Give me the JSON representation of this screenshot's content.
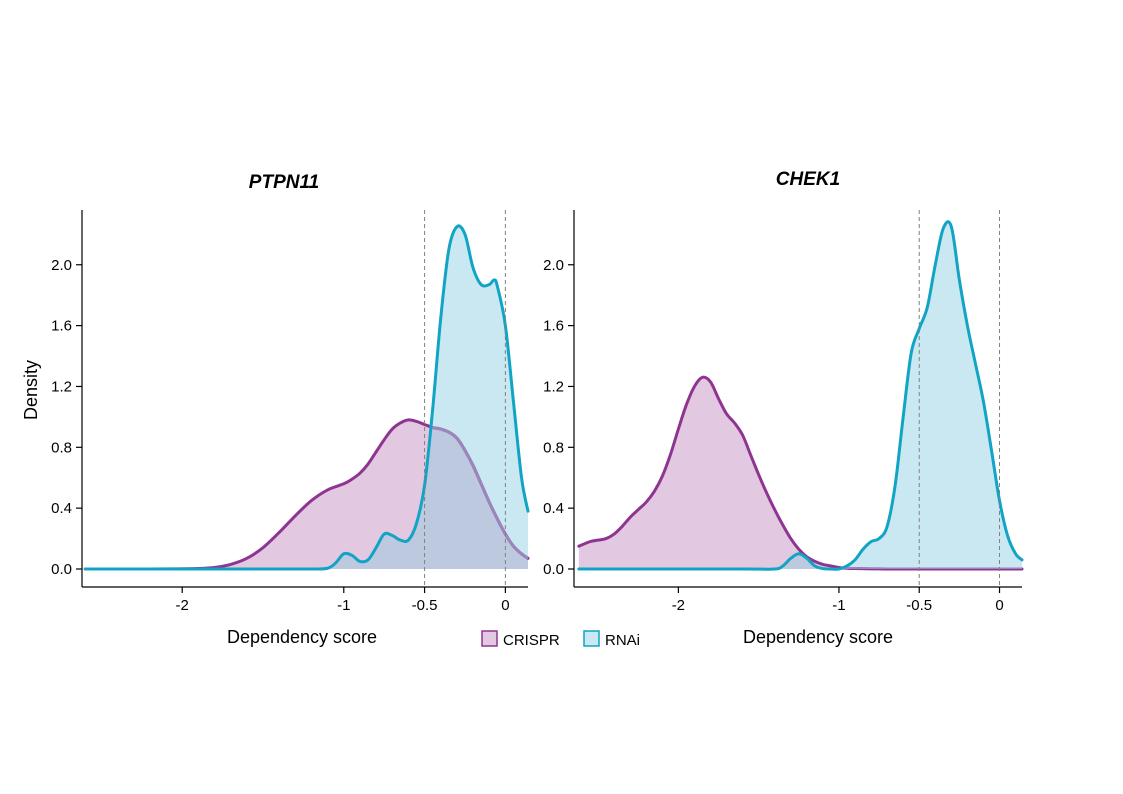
{
  "colors": {
    "crispr_line": "#8E3592",
    "crispr_fill": "#E2C8E0",
    "rnai_line": "#11A4C4",
    "rnai_fill": "#C9E8F2",
    "overlap_fill": "#BCC9DF",
    "overlap_line": "#9C84BC",
    "reference_line": "#808080"
  },
  "shared": {
    "ylabel": "Density",
    "xlabel": "Dependency score"
  },
  "legend": {
    "placement": "bottom-center",
    "items": [
      {
        "label": "CRISPR",
        "series": "CRISPR"
      },
      {
        "label": "RNAi",
        "series": "RNAi"
      }
    ]
  },
  "chart_data": [
    {
      "type": "area",
      "title": "PTPN11",
      "xlabel": "Dependency score",
      "ylabel": "Density",
      "xlim": [
        -2.62,
        0.14
      ],
      "ylim": [
        0,
        2.36
      ],
      "xticks": [
        -2,
        -1,
        -0.5,
        0
      ],
      "xtick_labels": [
        "-2",
        "-1",
        "-0.5",
        "0"
      ],
      "yticks": [
        0.0,
        0.4,
        0.8,
        1.2,
        1.6,
        2.0
      ],
      "ytick_labels": [
        "0.0",
        "0.4",
        "0.8",
        "1.2",
        "1.6",
        "2.0"
      ],
      "reference_lines_x": [
        -0.5,
        0
      ],
      "grid": false,
      "series": [
        {
          "name": "CRISPR",
          "x": [
            -2.6,
            -2.2,
            -1.9,
            -1.8,
            -1.7,
            -1.6,
            -1.5,
            -1.4,
            -1.3,
            -1.2,
            -1.1,
            -1.0,
            -0.95,
            -0.9,
            -0.85,
            -0.8,
            -0.75,
            -0.7,
            -0.65,
            -0.6,
            -0.55,
            -0.5,
            -0.45,
            -0.4,
            -0.35,
            -0.3,
            -0.25,
            -0.2,
            -0.15,
            -0.1,
            -0.05,
            0.0,
            0.05,
            0.1,
            0.14
          ],
          "y": [
            0.0,
            0.0,
            0.003,
            0.01,
            0.03,
            0.07,
            0.14,
            0.24,
            0.35,
            0.45,
            0.52,
            0.56,
            0.59,
            0.63,
            0.69,
            0.77,
            0.85,
            0.92,
            0.96,
            0.98,
            0.97,
            0.95,
            0.93,
            0.92,
            0.9,
            0.86,
            0.78,
            0.68,
            0.56,
            0.44,
            0.33,
            0.23,
            0.15,
            0.1,
            0.07
          ]
        },
        {
          "name": "RNAi",
          "x": [
            -2.6,
            -1.5,
            -1.2,
            -1.1,
            -1.05,
            -1.0,
            -0.95,
            -0.9,
            -0.85,
            -0.8,
            -0.75,
            -0.7,
            -0.65,
            -0.6,
            -0.55,
            -0.5,
            -0.45,
            -0.4,
            -0.35,
            -0.3,
            -0.25,
            -0.2,
            -0.15,
            -0.1,
            -0.07,
            -0.05,
            0.0,
            0.05,
            0.1,
            0.14
          ],
          "y": [
            0.0,
            0.0,
            0.0,
            0.005,
            0.04,
            0.1,
            0.09,
            0.05,
            0.06,
            0.14,
            0.23,
            0.22,
            0.19,
            0.19,
            0.3,
            0.55,
            1.05,
            1.65,
            2.1,
            2.25,
            2.2,
            1.98,
            1.87,
            1.87,
            1.9,
            1.86,
            1.6,
            1.1,
            0.6,
            0.38
          ]
        }
      ]
    },
    {
      "type": "area",
      "title": "CHEK1",
      "xlabel": "Dependency score",
      "ylabel": "",
      "xlim": [
        -2.65,
        0.14
      ],
      "ylim": [
        0,
        2.36
      ],
      "xticks": [
        -2,
        -1,
        -0.5,
        0
      ],
      "xtick_labels": [
        "-2",
        "-1",
        "-0.5",
        "0"
      ],
      "yticks": [
        0.0,
        0.4,
        0.8,
        1.2,
        1.6,
        2.0
      ],
      "ytick_labels": [
        "0.0",
        "0.4",
        "0.8",
        "1.2",
        "1.6",
        "2.0"
      ],
      "reference_lines_x": [
        -0.5,
        0
      ],
      "grid": false,
      "series": [
        {
          "name": "CRISPR",
          "x": [
            -2.62,
            -2.55,
            -2.5,
            -2.45,
            -2.4,
            -2.35,
            -2.3,
            -2.25,
            -2.2,
            -2.15,
            -2.1,
            -2.05,
            -2.0,
            -1.95,
            -1.9,
            -1.85,
            -1.8,
            -1.75,
            -1.7,
            -1.65,
            -1.6,
            -1.55,
            -1.5,
            -1.45,
            -1.4,
            -1.35,
            -1.3,
            -1.25,
            -1.2,
            -1.15,
            -1.1,
            -1.05,
            -1.0,
            -0.95,
            -0.9,
            -0.8,
            -0.7,
            -0.5,
            -0.2,
            0.0,
            0.14
          ],
          "y": [
            0.15,
            0.18,
            0.19,
            0.2,
            0.23,
            0.28,
            0.34,
            0.39,
            0.44,
            0.51,
            0.61,
            0.75,
            0.92,
            1.08,
            1.2,
            1.26,
            1.23,
            1.12,
            1.02,
            0.96,
            0.88,
            0.75,
            0.62,
            0.5,
            0.39,
            0.29,
            0.2,
            0.13,
            0.08,
            0.05,
            0.03,
            0.02,
            0.01,
            0.005,
            0.003,
            0.001,
            0.0,
            0.0,
            0.0,
            0.0,
            0.0
          ]
        },
        {
          "name": "RNAi",
          "x": [
            -2.62,
            -1.6,
            -1.4,
            -1.35,
            -1.3,
            -1.25,
            -1.2,
            -1.15,
            -1.1,
            -1.05,
            -1.0,
            -0.95,
            -0.9,
            -0.85,
            -0.8,
            -0.75,
            -0.7,
            -0.65,
            -0.6,
            -0.55,
            -0.5,
            -0.45,
            -0.4,
            -0.35,
            -0.3,
            -0.25,
            -0.2,
            -0.15,
            -0.1,
            -0.05,
            0.0,
            0.05,
            0.1,
            0.14
          ],
          "y": [
            0.0,
            0.0,
            0.0,
            0.02,
            0.07,
            0.1,
            0.07,
            0.02,
            0.003,
            0.0,
            0.0,
            0.02,
            0.06,
            0.13,
            0.18,
            0.2,
            0.28,
            0.55,
            1.0,
            1.42,
            1.58,
            1.72,
            2.0,
            2.24,
            2.25,
            1.9,
            1.6,
            1.35,
            1.1,
            0.78,
            0.45,
            0.22,
            0.1,
            0.06
          ]
        }
      ]
    }
  ]
}
